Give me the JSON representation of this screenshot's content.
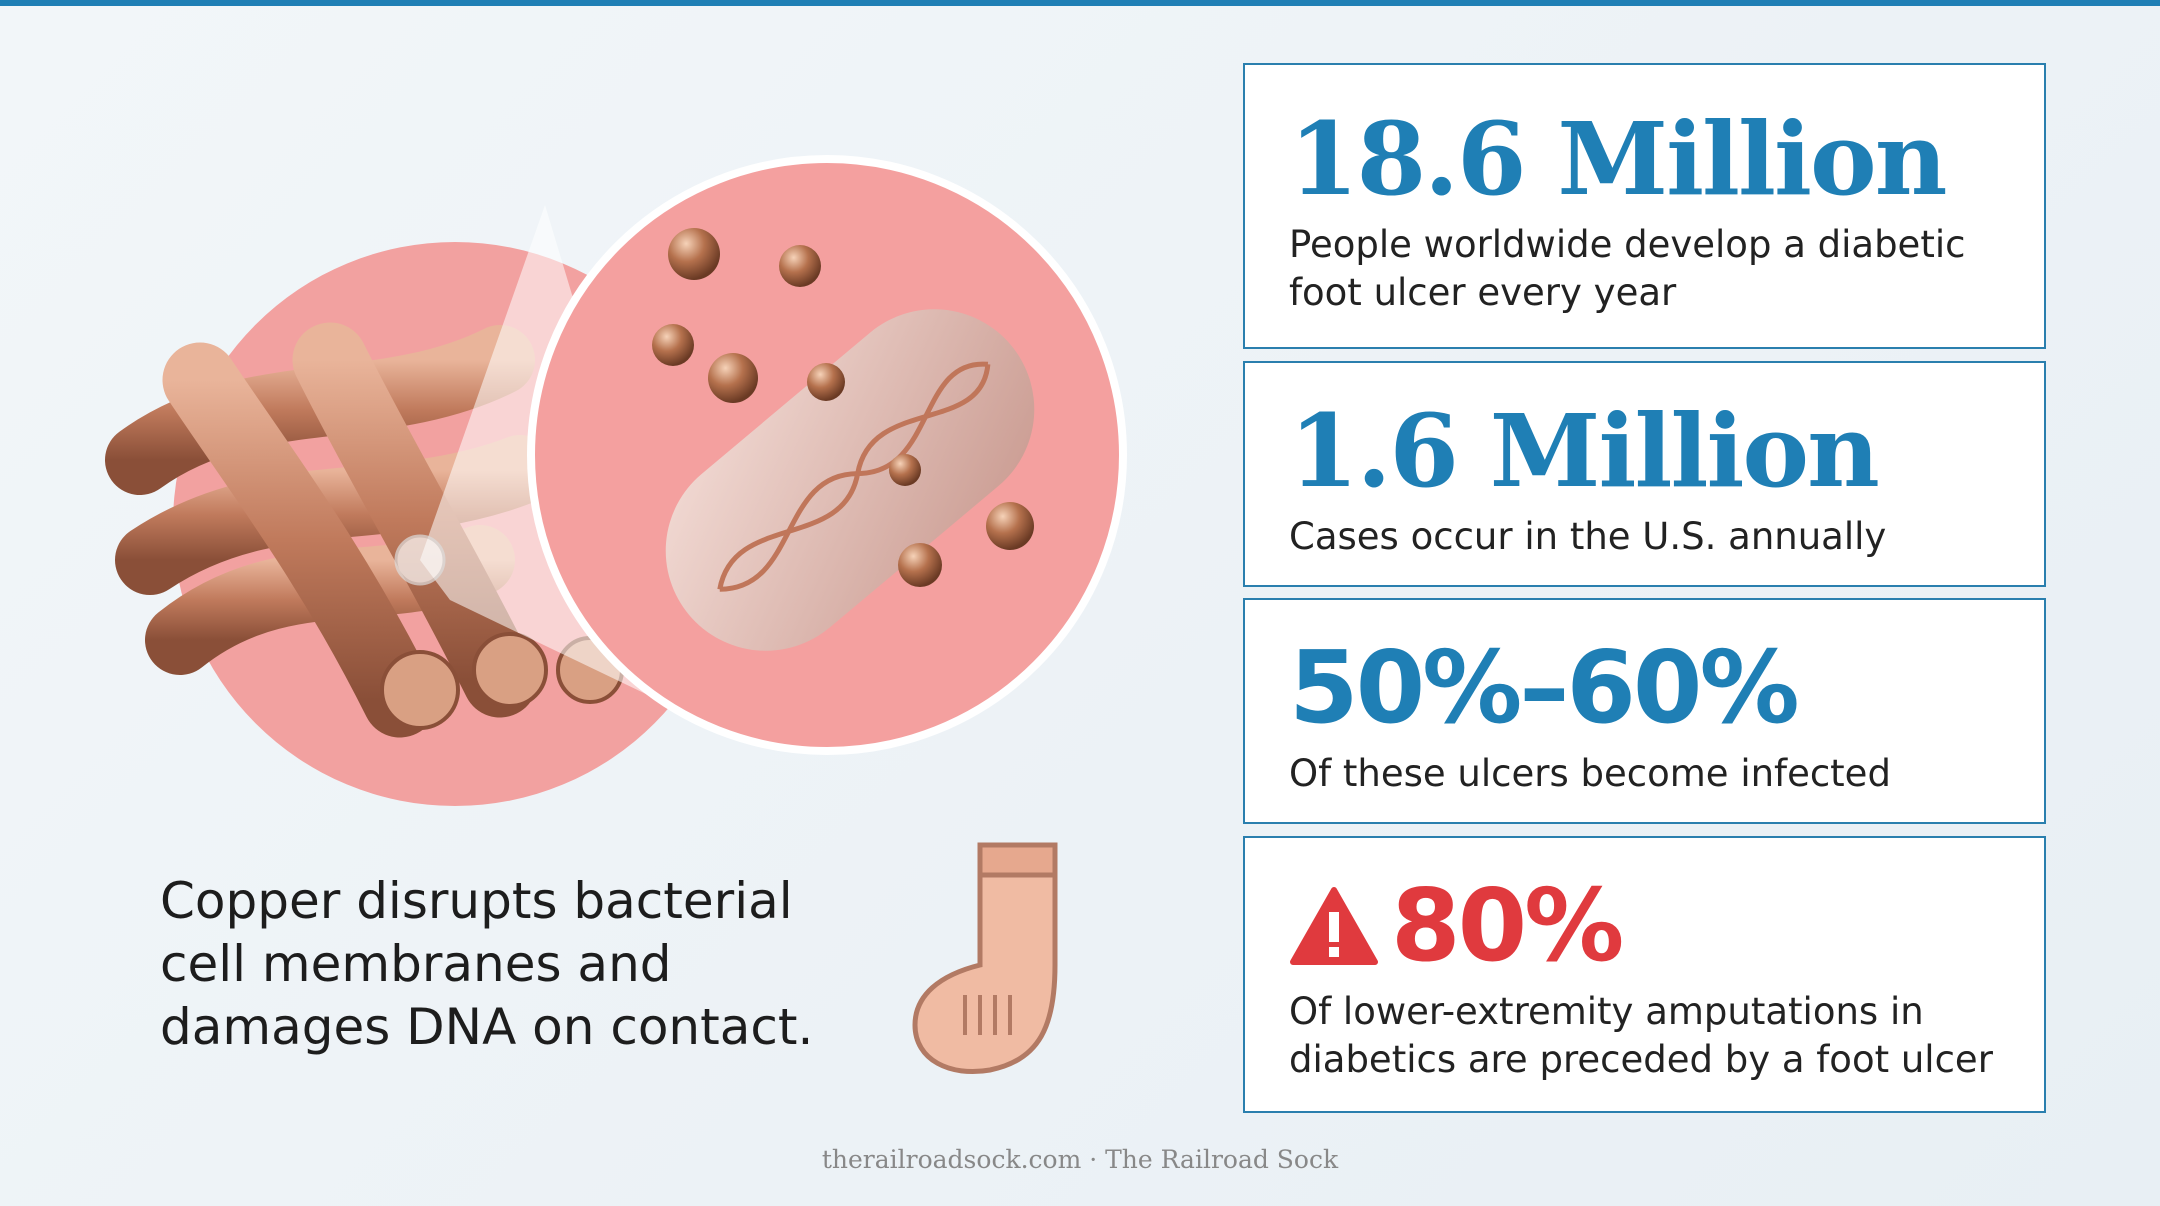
{
  "stats": [
    {
      "headline": "18.6 Million",
      "description": "People worldwide develop a diabetic foot ulcer every year"
    },
    {
      "headline": "1.6 Million",
      "description": "Cases occur in the U.S. annually"
    },
    {
      "headline": "50%–60%",
      "description": "Of these ulcers become infected"
    },
    {
      "headline": "80%",
      "description": "Of lower-extremity amputations in diabetics are preceded by a foot ulcer"
    }
  ],
  "caption": "Copper disrupts bacterial cell membranes and damages DNA on contact.",
  "footer": "therailroadsock.com · The Railroad Sock"
}
